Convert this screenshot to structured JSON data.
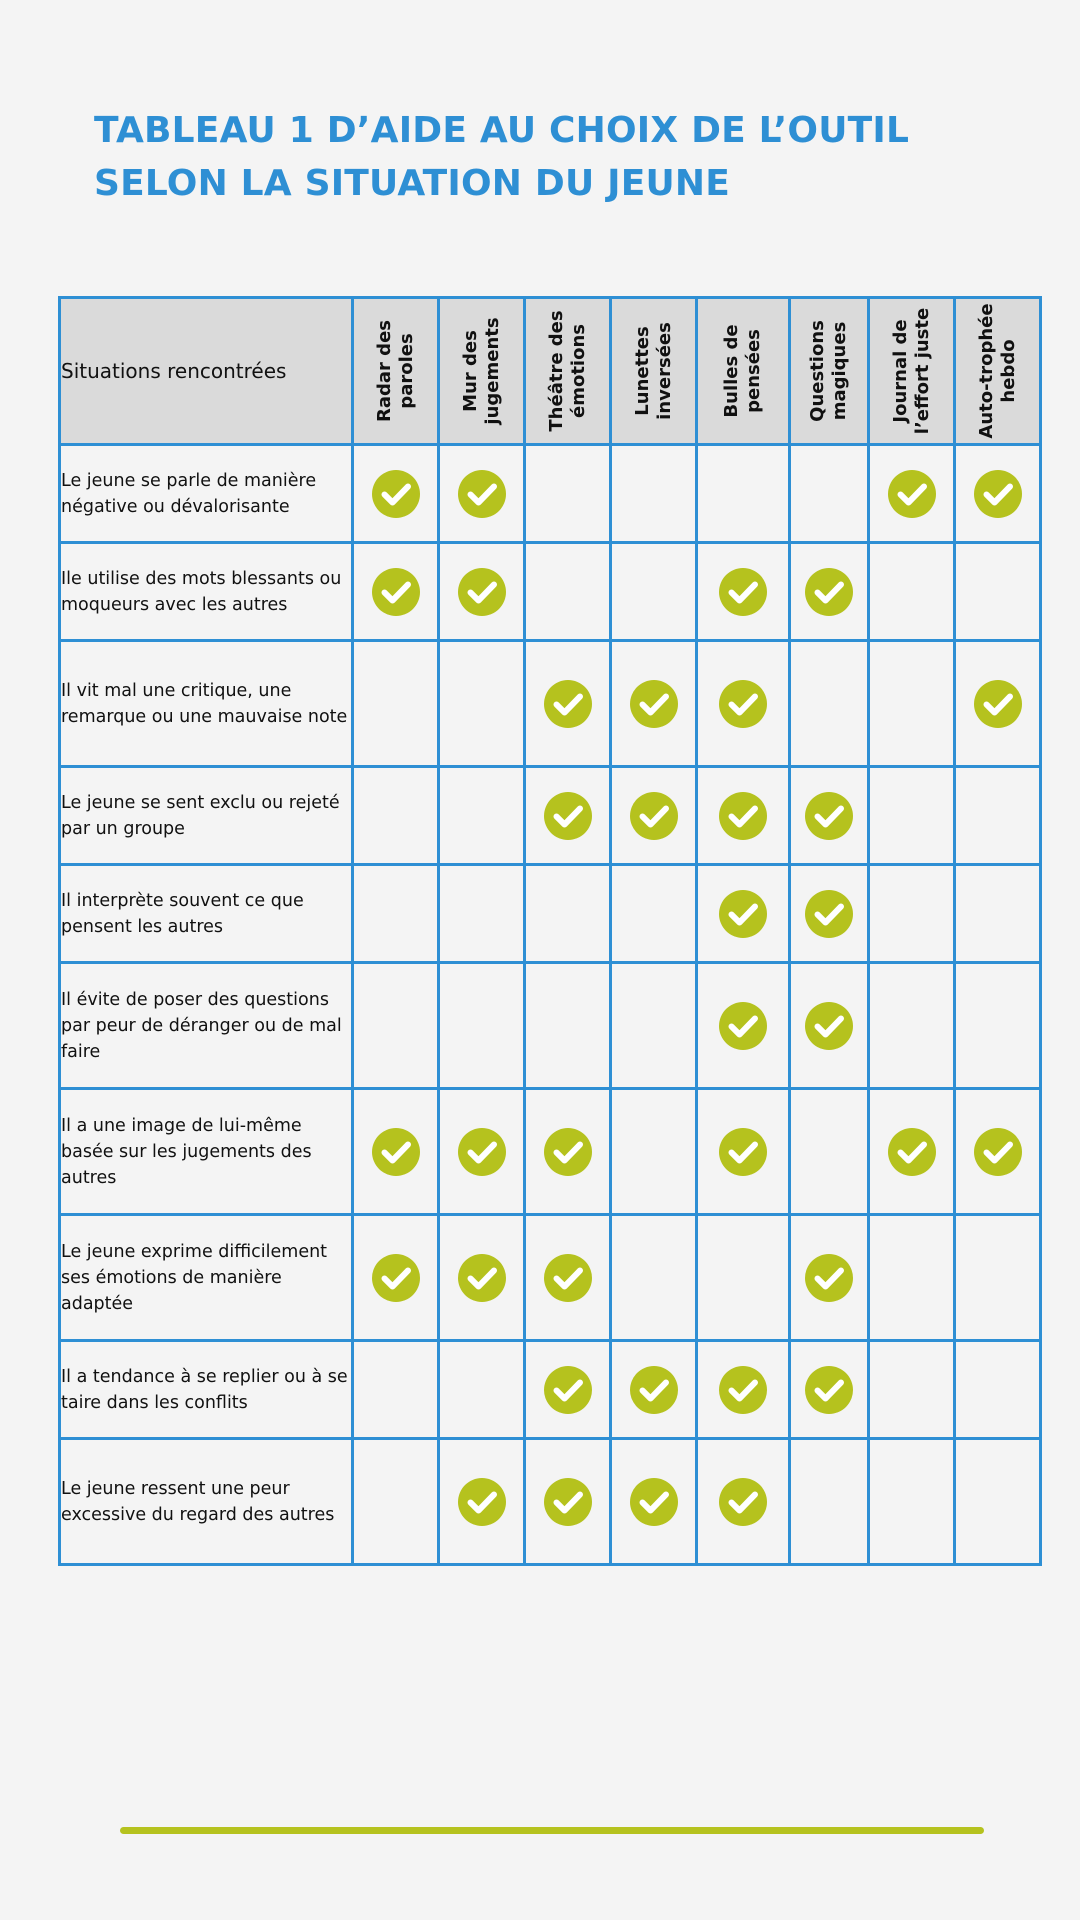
{
  "title": {
    "line1": "TABLEAU 1 D’AIDE AU CHOIX DE L’OUTIL",
    "line2": "SELON LA SITUATION DU JEUNE"
  },
  "colors": {
    "accent_blue": "#2e8fd4",
    "check_green": "#b5c21e",
    "header_gray": "#dadada",
    "background": "#f4f4f4"
  },
  "table": {
    "corner_header": "Situations rencontrées",
    "columns": [
      "Radar des paroles",
      "Mur des jugements",
      "Théâtre des émotions",
      "Lunettes inversées",
      "Bulles de pensées",
      "Questions magiques",
      "Journal de l’effort juste",
      "Auto-trophée hebdo"
    ],
    "check_icon": "check-circle-icon",
    "rows": [
      {
        "situation": "Le jeune se parle de manière négative ou dévalorisante",
        "checks": [
          1,
          1,
          0,
          0,
          0,
          0,
          1,
          1
        ]
      },
      {
        "situation": "Ile utilise des mots blessants ou moqueurs avec les autres",
        "checks": [
          1,
          1,
          0,
          0,
          1,
          1,
          0,
          0
        ]
      },
      {
        "situation": "Il vit mal une critique, une remarque ou une mauvaise note",
        "checks": [
          0,
          0,
          1,
          1,
          1,
          0,
          0,
          1
        ]
      },
      {
        "situation": "Le jeune se sent exclu ou rejeté par un groupe",
        "checks": [
          0,
          0,
          1,
          1,
          1,
          1,
          0,
          0
        ]
      },
      {
        "situation": "Il interprète souvent ce que pensent les autres",
        "checks": [
          0,
          0,
          0,
          0,
          1,
          1,
          0,
          0
        ]
      },
      {
        "situation": "Il évite de poser des questions par peur de déranger ou de mal faire",
        "checks": [
          0,
          0,
          0,
          0,
          1,
          1,
          0,
          0
        ]
      },
      {
        "situation": "Il a une image de lui-même basée sur les jugements des autres",
        "checks": [
          1,
          1,
          1,
          0,
          1,
          0,
          1,
          1
        ]
      },
      {
        "situation": "Le jeune exprime difficilement ses émotions de manière adaptée",
        "checks": [
          1,
          1,
          1,
          0,
          0,
          1,
          0,
          0
        ]
      },
      {
        "situation": "Il a tendance à se replier ou à se taire dans les conflits",
        "checks": [
          0,
          0,
          1,
          1,
          1,
          1,
          0,
          0
        ]
      },
      {
        "situation": "Le jeune ressent une peur excessive du regard des autres",
        "checks": [
          0,
          1,
          1,
          1,
          1,
          0,
          0,
          0
        ]
      }
    ]
  }
}
